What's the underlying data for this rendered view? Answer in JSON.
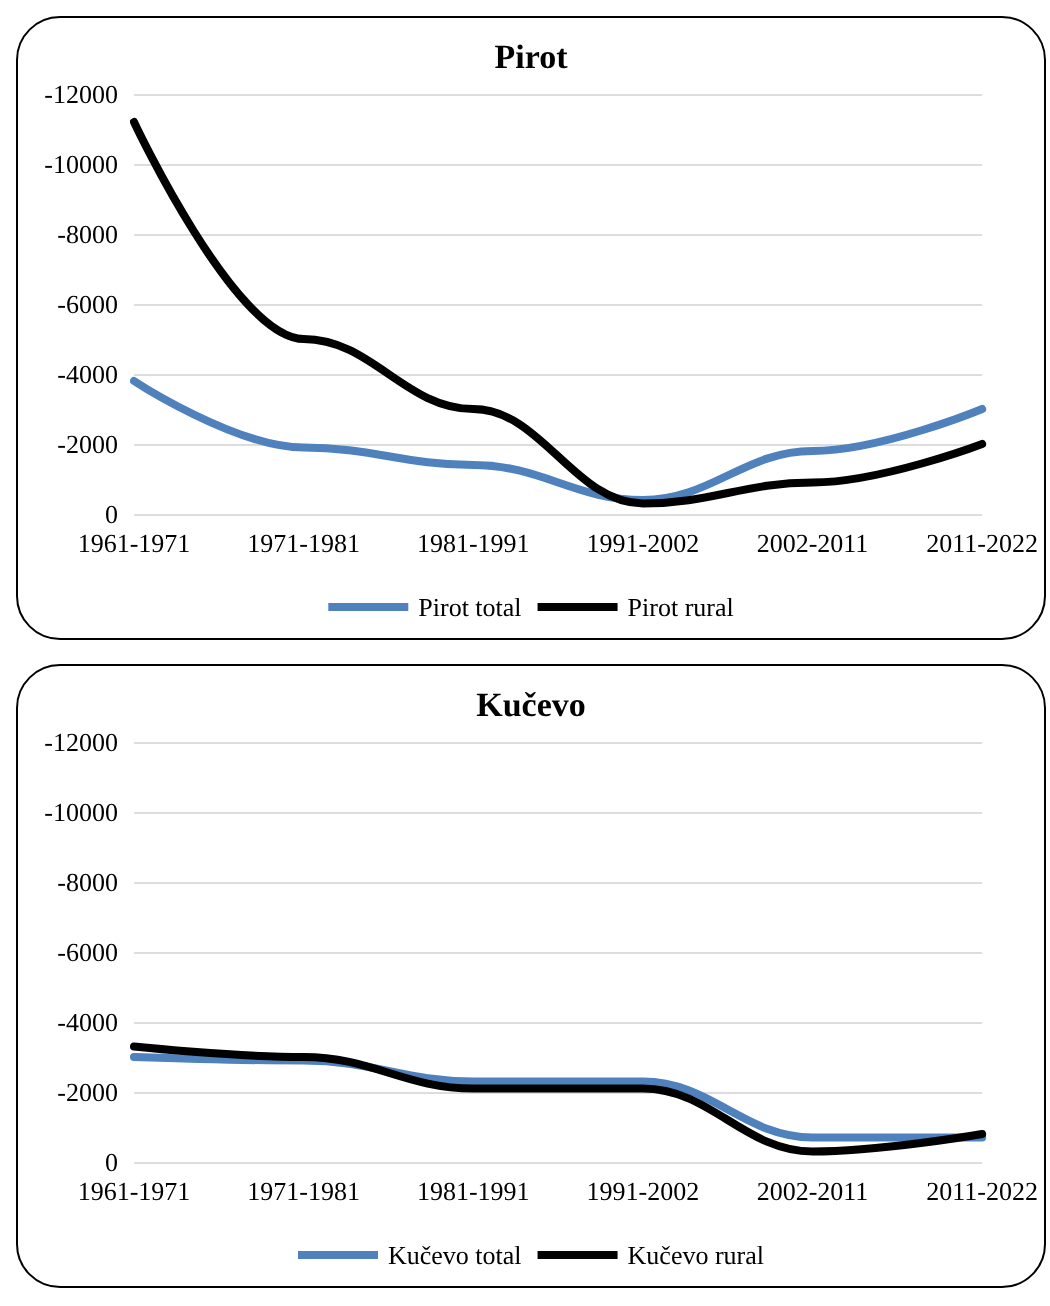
{
  "chart_data": [
    {
      "type": "line",
      "title": "Pirot",
      "categories": [
        "1961-1971",
        "1971-1981",
        "1981-1991",
        "1991-2002",
        "2002-2011",
        "2011-2022"
      ],
      "series": [
        {
          "name": "Pirot total",
          "color": "#4f81bd",
          "values": [
            -3800,
            -1900,
            -1400,
            -400,
            -1800,
            -3000
          ]
        },
        {
          "name": "Pirot rural",
          "color": "#000000",
          "values": [
            -11200,
            -5000,
            -3000,
            -300,
            -900,
            -2000
          ]
        }
      ],
      "ylim": [
        0,
        -12000
      ],
      "yticks": [
        0,
        -2000,
        -4000,
        -6000,
        -8000,
        -10000,
        -12000
      ],
      "grid": "y",
      "legend": "bottom",
      "marker": "none",
      "line_style": "solid"
    },
    {
      "type": "line",
      "title": "Kučevo",
      "categories": [
        "1961-1971",
        "1971-1981",
        "1981-1991",
        "1991-2002",
        "2002-2011",
        "2011-2022"
      ],
      "series": [
        {
          "name": "Kučevo total",
          "color": "#4f81bd",
          "values": [
            -3000,
            -2900,
            -2300,
            -2300,
            -700,
            -700
          ]
        },
        {
          "name": "Kučevo rural",
          "color": "#000000",
          "values": [
            -3300,
            -3000,
            -2100,
            -2100,
            -300,
            -800
          ]
        }
      ],
      "ylim": [
        0,
        -12000
      ],
      "yticks": [
        0,
        -2000,
        -4000,
        -6000,
        -8000,
        -10000,
        -12000
      ],
      "grid": "y",
      "legend": "bottom",
      "marker": "none",
      "line_style": "solid"
    }
  ]
}
